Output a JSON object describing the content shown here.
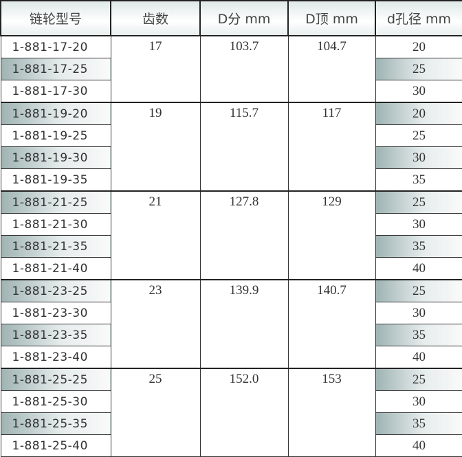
{
  "headers": [
    "链轮型号",
    "齿数",
    "D分 mm",
    "D顶 mm",
    "d孔径 mm"
  ],
  "groups": [
    {
      "teeth": "17",
      "d_pitch": "103.7",
      "d_top": "104.7",
      "rows": [
        {
          "model": "1-881-17-20",
          "bore": "20"
        },
        {
          "model": "1-881-17-25",
          "bore": "25"
        },
        {
          "model": "1-881-17-30",
          "bore": "30"
        }
      ]
    },
    {
      "teeth": "19",
      "d_pitch": "115.7",
      "d_top": "117",
      "rows": [
        {
          "model": "1-881-19-20",
          "bore": "20"
        },
        {
          "model": "1-881-19-25",
          "bore": "25"
        },
        {
          "model": "1-881-19-30",
          "bore": "30"
        },
        {
          "model": "1-881-19-35",
          "bore": "35"
        }
      ]
    },
    {
      "teeth": "21",
      "d_pitch": "127.8",
      "d_top": "129",
      "rows": [
        {
          "model": "1-881-21-25",
          "bore": "25"
        },
        {
          "model": "1-881-21-30",
          "bore": "30"
        },
        {
          "model": "1-881-21-35",
          "bore": "35"
        },
        {
          "model": "1-881-21-40",
          "bore": "40"
        }
      ]
    },
    {
      "teeth": "23",
      "d_pitch": "139.9",
      "d_top": "140.7",
      "rows": [
        {
          "model": "1-881-23-25",
          "bore": "25"
        },
        {
          "model": "1-881-23-30",
          "bore": "30"
        },
        {
          "model": "1-881-23-35",
          "bore": "35"
        },
        {
          "model": "1-881-23-40",
          "bore": "40"
        }
      ]
    },
    {
      "teeth": "25",
      "d_pitch": "152.0",
      "d_top": "153",
      "rows": [
        {
          "model": "1-881-25-25",
          "bore": "25"
        },
        {
          "model": "1-881-25-30",
          "bore": "30"
        },
        {
          "model": "1-881-25-35",
          "bore": "35"
        },
        {
          "model": "1-881-25-40",
          "bore": "40"
        }
      ]
    }
  ]
}
